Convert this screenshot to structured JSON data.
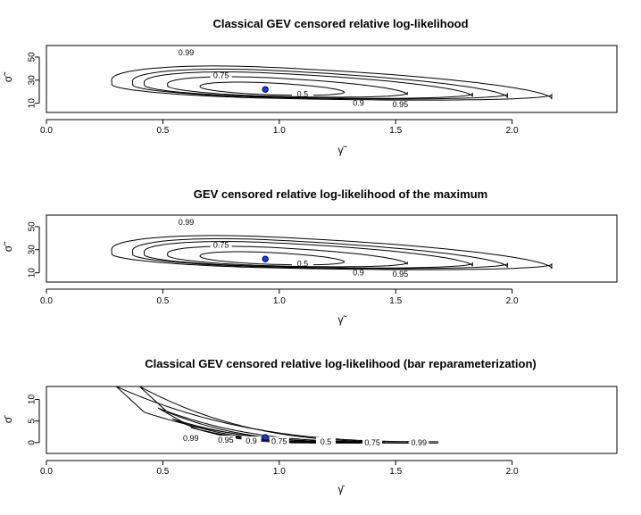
{
  "chart_data": [
    {
      "type": "contour",
      "title": "Classical GEV censored relative log-likelihood",
      "xlabel": "γ̃",
      "ylabel": "σ̃",
      "xlim": [
        0.0,
        2.45
      ],
      "ylim": [
        2,
        60
      ],
      "xticks": [
        "0.0",
        "0.5",
        "1.0",
        "1.5",
        "2.0"
      ],
      "yticks": [
        "10",
        "30",
        "50"
      ],
      "mle": {
        "x": 0.94,
        "y": 22
      },
      "levels": [
        {
          "label": "0.5",
          "xmin": 0.66,
          "xmax": 1.28,
          "ymin": 13.5,
          "ymax": 32.0,
          "label_at": [
            1.1,
            18
          ]
        },
        {
          "label": "0.75",
          "xmin": 0.52,
          "xmax": 1.55,
          "ymin": 10.5,
          "ymax": 39.0,
          "label_at": [
            0.75,
            34
          ]
        },
        {
          "label": "0.9",
          "xmin": 0.42,
          "xmax": 1.83,
          "ymin": 8.5,
          "ymax": 45.0,
          "label_at": [
            1.34,
            10
          ]
        },
        {
          "label": "0.95",
          "xmin": 0.37,
          "xmax": 1.98,
          "ymin": 7.5,
          "ymax": 48.5,
          "label_at": [
            1.52,
            9
          ]
        },
        {
          "label": "0.99",
          "xmin": 0.28,
          "xmax": 2.17,
          "ymin": 5.8,
          "ymax": 52.5,
          "label_at": [
            0.6,
            54
          ]
        }
      ]
    },
    {
      "type": "contour",
      "title": "GEV censored relative log-likelihood of the maximum",
      "xlabel": "γ̃",
      "ylabel": "σ̃",
      "xlim": [
        0.0,
        2.45
      ],
      "ylim": [
        2,
        60
      ],
      "xticks": [
        "0.0",
        "0.5",
        "1.0",
        "1.5",
        "2.0"
      ],
      "yticks": [
        "10",
        "30",
        "50"
      ],
      "mle": {
        "x": 0.94,
        "y": 22
      },
      "levels": [
        {
          "label": "0.5",
          "xmin": 0.66,
          "xmax": 1.28,
          "ymin": 13.5,
          "ymax": 32.0,
          "label_at": [
            1.1,
            18
          ]
        },
        {
          "label": "0.75",
          "xmin": 0.52,
          "xmax": 1.55,
          "ymin": 10.5,
          "ymax": 39.0,
          "label_at": [
            0.75,
            34
          ]
        },
        {
          "label": "0.9",
          "xmin": 0.42,
          "xmax": 1.83,
          "ymin": 8.5,
          "ymax": 45.0,
          "label_at": [
            1.34,
            10
          ]
        },
        {
          "label": "0.95",
          "xmin": 0.37,
          "xmax": 1.98,
          "ymin": 7.5,
          "ymax": 48.5,
          "label_at": [
            1.52,
            9
          ]
        },
        {
          "label": "0.99",
          "xmin": 0.28,
          "xmax": 2.17,
          "ymin": 5.8,
          "ymax": 52.5,
          "label_at": [
            0.6,
            54
          ]
        }
      ]
    },
    {
      "type": "contour",
      "title": "Classical GEV censored relative log-likelihood (bar reparameterization)",
      "xlabel": "γ̄",
      "ylabel": "σ̄",
      "xlim": [
        0.0,
        2.45
      ],
      "ylim": [
        -2.5,
        13
      ],
      "xticks": [
        "0.0",
        "0.5",
        "1.0",
        "1.5",
        "2.0"
      ],
      "yticks": [
        "0",
        "5",
        "10"
      ],
      "mle": {
        "x": 0.94,
        "y": 1.2
      },
      "levels": [
        {
          "label": "0.5",
          "xmin": 0.62,
          "xmax": 1.22,
          "ymax": 3.5,
          "label_at": [
            1.2,
            0
          ]
        },
        {
          "label": "0.75",
          "xmin": 0.54,
          "xmax": 1.35,
          "ymax": 5.5,
          "label_at": [
            1.0,
            0
          ]
        },
        {
          "label": "0.9",
          "xmin": 0.48,
          "xmax": 1.45,
          "ymax": 8.0,
          "label_at": [
            0.88,
            0
          ]
        },
        {
          "label": "0.95",
          "xmin": 0.4,
          "xmax": 1.55,
          "ymax": 13.0,
          "label_at": [
            0.75,
            0
          ]
        },
        {
          "label": "0.99",
          "xmin": 0.3,
          "xmax": 1.68,
          "ymax": 13.0,
          "label_at": [
            0.62,
            1
          ]
        }
      ],
      "bottom_labels": [
        {
          "label": "0.99",
          "at": [
            0.62,
            1.0
          ]
        },
        {
          "label": "0.95",
          "at": [
            0.77,
            0.6
          ]
        },
        {
          "label": "0.9",
          "at": [
            0.88,
            0.4
          ]
        },
        {
          "label": "0.75",
          "at": [
            1.0,
            0.3
          ]
        },
        {
          "label": "0.5",
          "at": [
            1.2,
            0.2
          ]
        },
        {
          "label": "0.75",
          "at": [
            1.4,
            0.0
          ]
        },
        {
          "label": "0.99",
          "at": [
            1.6,
            0.0
          ]
        }
      ]
    }
  ]
}
